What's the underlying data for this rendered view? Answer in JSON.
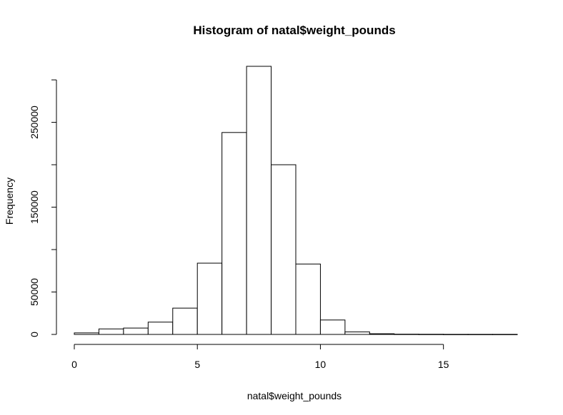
{
  "chart_data": {
    "type": "bar",
    "title": "Histogram of natal$weight_pounds",
    "xlabel": "natal$weight_pounds",
    "ylabel": "Frequency",
    "bin_edges": [
      0,
      1,
      2,
      3,
      4,
      5,
      6,
      7,
      8,
      9,
      10,
      11,
      12,
      13,
      14,
      15,
      16,
      17,
      18
    ],
    "values": [
      1800,
      6500,
      7500,
      14500,
      31000,
      84000,
      238000,
      316000,
      200000,
      83000,
      17000,
      3000,
      800,
      300,
      200,
      100,
      100,
      100
    ],
    "xlim": [
      0,
      18
    ],
    "ylim": [
      0,
      316000
    ],
    "x_ticks": [
      0,
      5,
      10,
      15
    ],
    "x_tick_labels": [
      "0",
      "5",
      "10",
      "15"
    ],
    "y_ticks": [
      0,
      50000,
      150000,
      250000
    ],
    "y_tick_labels": [
      "0",
      "50000",
      "150000",
      "250000"
    ],
    "y_minor_ticks": [
      100000,
      200000,
      300000
    ],
    "grid": false
  }
}
